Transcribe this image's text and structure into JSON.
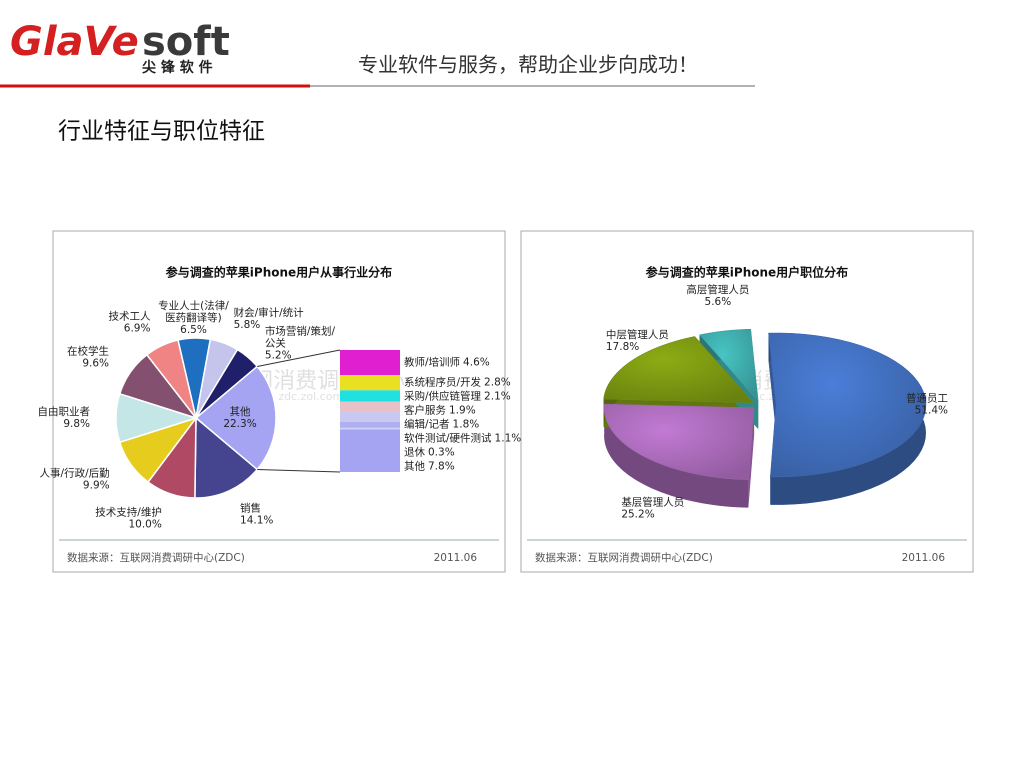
{
  "header": {
    "logo_left": "GlaVe",
    "logo_right": "soft",
    "logo_cn": "尖 锋 软 件",
    "slogan": "专业软件与服务，帮助企业步向成功！"
  },
  "title": "行业特征与职位特征",
  "chart_data": [
    {
      "type": "pie",
      "title": "参与调查的苹果iPhone用户从事行业分布",
      "categories": [
        "专业人士(法律/医药翻译等)",
        "财会/审计/统计",
        "市场营销/策划/公关",
        "其他",
        "销售",
        "技术支持/维护",
        "人事/行政/后勤",
        "自由职业者",
        "在校学生",
        "技术工人"
      ],
      "values": [
        6.5,
        5.8,
        5.2,
        22.3,
        14.1,
        10.0,
        9.9,
        9.8,
        9.6,
        6.9
      ],
      "value_labels": [
        "6.5%",
        "5.8%",
        "5.2%",
        "22.3%",
        "14.1%",
        "10.0%",
        "9.9%",
        "9.8%",
        "9.6%",
        "6.9%"
      ],
      "colors": [
        "#1f6fc0",
        "#c4c4ec",
        "#20206a",
        "#a4a4f2",
        "#45458f",
        "#b04a64",
        "#e6cc1c",
        "#c4e6e6",
        "#84506f",
        "#f08484"
      ],
      "breakdown": {
        "categories": [
          "教师/培训师",
          "系统程序员/开发",
          "采购/供应链管理",
          "客户服务",
          "编辑/记者",
          "软件测试/硬件测试",
          "退休",
          "其他"
        ],
        "values": [
          4.6,
          2.8,
          2.1,
          1.9,
          1.8,
          1.1,
          0.3,
          7.8
        ],
        "value_labels": [
          "4.6%",
          "2.8%",
          "2.1%",
          "1.9%",
          "1.8%",
          "1.1%",
          "0.3%",
          "7.8%"
        ],
        "colors": [
          "#e020d0",
          "#e8e020",
          "#20e0e0",
          "#e8c0c8",
          "#c8c8f0",
          "#b0b0f0",
          "#d0d0f8",
          "#a4a4f2"
        ]
      },
      "watermark": "ZDC 互联网消费调研中心",
      "watermark_url": "zdc.zol.com.cn",
      "source": "数据来源：互联网消费调研中心(ZDC)",
      "date": "2011.06"
    },
    {
      "type": "pie",
      "3d": true,
      "title": "参与调查的苹果iPhone用户职位分布",
      "categories": [
        "普通员工",
        "基层管理人员",
        "中层管理人员",
        "高层管理人员"
      ],
      "values": [
        51.4,
        25.2,
        17.8,
        5.6
      ],
      "value_labels": [
        "51.4%",
        "25.2%",
        "17.8%",
        "5.6%"
      ],
      "colors": [
        "#4a7ed8",
        "#c27ad4",
        "#8cac14",
        "#48c4c4"
      ],
      "watermark": "ZDC 互联网消费调研中心",
      "watermark_url": "zdc.zol.com.cn",
      "source": "数据来源：互联网消费调研中心(ZDC)",
      "date": "2011.06"
    }
  ]
}
